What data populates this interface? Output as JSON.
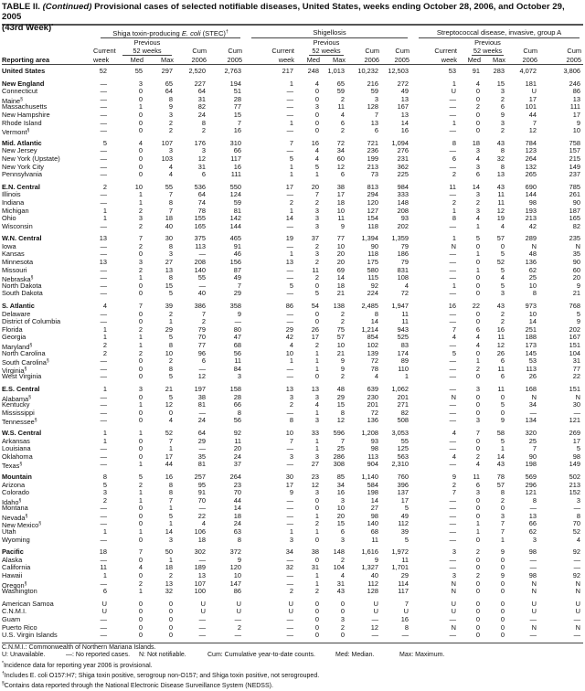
{
  "title": {
    "prefix": "TABLE II. ",
    "italic": "(Continued)",
    "text": " Provisional cases of selected notifiable diseases, United States, weeks ending October 28, 2006, and October 29, 2005",
    "line2": "(43rd Week)",
    "mark": "*"
  },
  "groups": [
    {
      "label": "Shiga toxin-producing ",
      "italic": "E. coli",
      "suffix": " (STEC)",
      "mark": "†"
    },
    {
      "label": "Shigellosis"
    },
    {
      "label": "Streptococcal disease, invasive, group A"
    }
  ],
  "headers": {
    "previous": "Previous",
    "weeks52": "52 weeks",
    "current": "Current",
    "week": "week",
    "med": "Med",
    "max": "Max",
    "cum": "Cum",
    "y2006": "2006",
    "y2005": "2005",
    "area": "Reporting area"
  },
  "rows": [
    {
      "name": "United States",
      "bold": true,
      "gap": false,
      "v": [
        "52",
        "55",
        "297",
        "2,520",
        "2,763",
        "217",
        "248",
        "1,013",
        "10,232",
        "12,503",
        "53",
        "91",
        "283",
        "4,072",
        "3,806"
      ]
    },
    {
      "name": "New England",
      "bold": true,
      "gap": true,
      "v": [
        "—",
        "3",
        "65",
        "227",
        "194",
        "1",
        "4",
        "65",
        "216",
        "272",
        "1",
        "4",
        "15",
        "181",
        "246"
      ]
    },
    {
      "name": "Connecticut",
      "v": [
        "—",
        "0",
        "64",
        "64",
        "51",
        "—",
        "0",
        "59",
        "59",
        "49",
        "U",
        "0",
        "3",
        "U",
        "86"
      ]
    },
    {
      "name": "Maine",
      "sup": "§",
      "v": [
        "—",
        "0",
        "8",
        "31",
        "28",
        "—",
        "0",
        "2",
        "3",
        "13",
        "—",
        "0",
        "2",
        "17",
        "13"
      ]
    },
    {
      "name": "Massachusetts",
      "v": [
        "—",
        "1",
        "9",
        "82",
        "77",
        "—",
        "3",
        "11",
        "128",
        "167",
        "—",
        "2",
        "6",
        "101",
        "111"
      ]
    },
    {
      "name": "New Hampshire",
      "v": [
        "—",
        "0",
        "3",
        "24",
        "15",
        "—",
        "0",
        "4",
        "7",
        "13",
        "—",
        "0",
        "9",
        "44",
        "17"
      ]
    },
    {
      "name": "Rhode Island",
      "v": [
        "—",
        "0",
        "2",
        "8",
        "7",
        "1",
        "0",
        "6",
        "13",
        "14",
        "1",
        "0",
        "3",
        "7",
        "9"
      ]
    },
    {
      "name": "Vermont",
      "sup": "§",
      "v": [
        "—",
        "0",
        "2",
        "2",
        "16",
        "—",
        "0",
        "2",
        "6",
        "16",
        "—",
        "0",
        "2",
        "12",
        "10"
      ]
    },
    {
      "name": "Mid. Atlantic",
      "bold": true,
      "gap": true,
      "v": [
        "5",
        "4",
        "107",
        "176",
        "310",
        "7",
        "16",
        "72",
        "721",
        "1,094",
        "8",
        "18",
        "43",
        "784",
        "758"
      ]
    },
    {
      "name": "New Jersey",
      "v": [
        "—",
        "0",
        "3",
        "3",
        "66",
        "—",
        "4",
        "34",
        "236",
        "276",
        "—",
        "3",
        "8",
        "123",
        "157"
      ]
    },
    {
      "name": "New York (Upstate)",
      "v": [
        "—",
        "0",
        "103",
        "12",
        "117",
        "5",
        "4",
        "60",
        "199",
        "231",
        "6",
        "4",
        "32",
        "264",
        "215"
      ]
    },
    {
      "name": "New York City",
      "v": [
        "—",
        "0",
        "4",
        "31",
        "16",
        "1",
        "5",
        "12",
        "213",
        "362",
        "—",
        "3",
        "8",
        "132",
        "149"
      ]
    },
    {
      "name": "Pennsylvania",
      "v": [
        "—",
        "0",
        "4",
        "6",
        "111",
        "1",
        "1",
        "6",
        "73",
        "225",
        "2",
        "6",
        "13",
        "265",
        "237"
      ]
    },
    {
      "name": "E.N. Central",
      "bold": true,
      "gap": true,
      "v": [
        "2",
        "10",
        "55",
        "536",
        "550",
        "17",
        "20",
        "38",
        "813",
        "984",
        "11",
        "14",
        "43",
        "690",
        "785"
      ]
    },
    {
      "name": "Illinois",
      "v": [
        "—",
        "1",
        "7",
        "64",
        "124",
        "—",
        "7",
        "17",
        "294",
        "333",
        "—",
        "3",
        "11",
        "144",
        "261"
      ]
    },
    {
      "name": "Indiana",
      "v": [
        "—",
        "1",
        "8",
        "74",
        "59",
        "2",
        "2",
        "18",
        "120",
        "148",
        "2",
        "2",
        "11",
        "98",
        "90"
      ]
    },
    {
      "name": "Michigan",
      "v": [
        "1",
        "2",
        "7",
        "78",
        "81",
        "1",
        "3",
        "10",
        "127",
        "208",
        "1",
        "3",
        "12",
        "193",
        "187"
      ]
    },
    {
      "name": "Ohio",
      "v": [
        "1",
        "3",
        "18",
        "155",
        "142",
        "14",
        "3",
        "11",
        "154",
        "93",
        "8",
        "4",
        "19",
        "213",
        "165"
      ]
    },
    {
      "name": "Wisconsin",
      "v": [
        "—",
        "2",
        "40",
        "165",
        "144",
        "—",
        "3",
        "9",
        "118",
        "202",
        "—",
        "1",
        "4",
        "42",
        "82"
      ]
    },
    {
      "name": "W.N. Central",
      "bold": true,
      "gap": true,
      "v": [
        "13",
        "7",
        "30",
        "375",
        "465",
        "19",
        "37",
        "77",
        "1,394",
        "1,359",
        "1",
        "5",
        "57",
        "289",
        "235"
      ]
    },
    {
      "name": "Iowa",
      "v": [
        "—",
        "2",
        "8",
        "113",
        "91",
        "—",
        "2",
        "10",
        "90",
        "79",
        "N",
        "0",
        "0",
        "N",
        "N"
      ]
    },
    {
      "name": "Kansas",
      "v": [
        "—",
        "0",
        "3",
        "—",
        "46",
        "1",
        "3",
        "20",
        "118",
        "186",
        "—",
        "1",
        "5",
        "48",
        "35"
      ]
    },
    {
      "name": "Minnesota",
      "v": [
        "13",
        "3",
        "27",
        "208",
        "156",
        "13",
        "2",
        "20",
        "175",
        "79",
        "—",
        "0",
        "52",
        "136",
        "90"
      ]
    },
    {
      "name": "Missouri",
      "v": [
        "—",
        "2",
        "13",
        "140",
        "87",
        "—",
        "11",
        "69",
        "580",
        "831",
        "—",
        "1",
        "5",
        "62",
        "60"
      ]
    },
    {
      "name": "Nebraska",
      "sup": "§",
      "v": [
        "—",
        "1",
        "8",
        "55",
        "49",
        "—",
        "2",
        "14",
        "115",
        "108",
        "—",
        "0",
        "4",
        "25",
        "20"
      ]
    },
    {
      "name": "North Dakota",
      "v": [
        "—",
        "0",
        "15",
        "—",
        "7",
        "5",
        "0",
        "18",
        "92",
        "4",
        "1",
        "0",
        "5",
        "10",
        "9"
      ]
    },
    {
      "name": "South Dakota",
      "v": [
        "—",
        "0",
        "5",
        "40",
        "29",
        "—",
        "5",
        "21",
        "224",
        "72",
        "—",
        "0",
        "3",
        "8",
        "21"
      ]
    },
    {
      "name": "S. Atlantic",
      "bold": true,
      "gap": true,
      "v": [
        "4",
        "7",
        "39",
        "386",
        "358",
        "86",
        "54",
        "138",
        "2,485",
        "1,947",
        "16",
        "22",
        "43",
        "973",
        "768"
      ]
    },
    {
      "name": "Delaware",
      "v": [
        "—",
        "0",
        "2",
        "7",
        "9",
        "—",
        "0",
        "2",
        "8",
        "11",
        "—",
        "0",
        "2",
        "10",
        "5"
      ]
    },
    {
      "name": "District of Columbia",
      "v": [
        "—",
        "0",
        "1",
        "2",
        "—",
        "—",
        "0",
        "2",
        "14",
        "11",
        "—",
        "0",
        "2",
        "14",
        "9"
      ]
    },
    {
      "name": "Florida",
      "v": [
        "1",
        "2",
        "29",
        "79",
        "80",
        "29",
        "26",
        "75",
        "1,214",
        "943",
        "7",
        "6",
        "16",
        "251",
        "202"
      ]
    },
    {
      "name": "Georgia",
      "v": [
        "1",
        "1",
        "5",
        "70",
        "47",
        "42",
        "17",
        "57",
        "854",
        "525",
        "4",
        "4",
        "11",
        "188",
        "167"
      ]
    },
    {
      "name": "Maryland",
      "sup": "§",
      "v": [
        "2",
        "1",
        "8",
        "77",
        "68",
        "4",
        "2",
        "10",
        "102",
        "83",
        "—",
        "4",
        "12",
        "173",
        "151"
      ]
    },
    {
      "name": "North Carolina",
      "v": [
        "2",
        "2",
        "10",
        "96",
        "56",
        "10",
        "1",
        "21",
        "139",
        "174",
        "5",
        "0",
        "26",
        "145",
        "104"
      ]
    },
    {
      "name": "South Carolina",
      "sup": "§",
      "v": [
        "—",
        "0",
        "2",
        "6",
        "11",
        "1",
        "1",
        "9",
        "72",
        "89",
        "—",
        "1",
        "6",
        "53",
        "31"
      ]
    },
    {
      "name": "Virginia",
      "sup": "§",
      "v": [
        "—",
        "0",
        "8",
        "—",
        "84",
        "—",
        "1",
        "9",
        "78",
        "110",
        "—",
        "2",
        "11",
        "113",
        "77"
      ]
    },
    {
      "name": "West Virginia",
      "v": [
        "—",
        "0",
        "5",
        "12",
        "3",
        "—",
        "0",
        "2",
        "4",
        "1",
        "—",
        "0",
        "6",
        "26",
        "22"
      ]
    },
    {
      "name": "E.S. Central",
      "bold": true,
      "gap": true,
      "v": [
        "1",
        "3",
        "21",
        "197",
        "158",
        "13",
        "13",
        "48",
        "639",
        "1,062",
        "—",
        "3",
        "11",
        "168",
        "151"
      ]
    },
    {
      "name": "Alabama",
      "sup": "§",
      "v": [
        "—",
        "0",
        "5",
        "38",
        "28",
        "3",
        "3",
        "29",
        "230",
        "201",
        "N",
        "0",
        "0",
        "N",
        "N"
      ]
    },
    {
      "name": "Kentucky",
      "v": [
        "—",
        "1",
        "12",
        "81",
        "66",
        "2",
        "4",
        "15",
        "201",
        "271",
        "—",
        "0",
        "5",
        "34",
        "30"
      ]
    },
    {
      "name": "Mississippi",
      "v": [
        "—",
        "0",
        "0",
        "—",
        "8",
        "—",
        "1",
        "8",
        "72",
        "82",
        "—",
        "0",
        "0",
        "—",
        "—"
      ]
    },
    {
      "name": "Tennessee",
      "sup": "§",
      "v": [
        "—",
        "0",
        "4",
        "24",
        "56",
        "8",
        "3",
        "12",
        "136",
        "508",
        "—",
        "3",
        "9",
        "134",
        "121"
      ]
    },
    {
      "name": "W.S. Central",
      "bold": true,
      "gap": true,
      "v": [
        "1",
        "1",
        "52",
        "64",
        "92",
        "10",
        "33",
        "596",
        "1,208",
        "3,053",
        "4",
        "7",
        "58",
        "320",
        "269"
      ]
    },
    {
      "name": "Arkansas",
      "v": [
        "1",
        "0",
        "7",
        "29",
        "11",
        "7",
        "1",
        "7",
        "93",
        "55",
        "—",
        "0",
        "5",
        "25",
        "17"
      ]
    },
    {
      "name": "Louisiana",
      "v": [
        "—",
        "0",
        "1",
        "—",
        "20",
        "—",
        "1",
        "25",
        "98",
        "125",
        "—",
        "0",
        "1",
        "7",
        "5"
      ]
    },
    {
      "name": "Oklahoma",
      "v": [
        "—",
        "0",
        "17",
        "35",
        "24",
        "3",
        "3",
        "286",
        "113",
        "563",
        "4",
        "2",
        "14",
        "90",
        "98"
      ]
    },
    {
      "name": "Texas",
      "sup": "§",
      "v": [
        "—",
        "1",
        "44",
        "81",
        "37",
        "—",
        "27",
        "308",
        "904",
        "2,310",
        "—",
        "4",
        "43",
        "198",
        "149"
      ]
    },
    {
      "name": "Mountain",
      "bold": true,
      "gap": true,
      "v": [
        "8",
        "5",
        "16",
        "257",
        "264",
        "30",
        "23",
        "85",
        "1,140",
        "760",
        "9",
        "11",
        "78",
        "569",
        "502"
      ]
    },
    {
      "name": "Arizona",
      "v": [
        "5",
        "2",
        "8",
        "95",
        "23",
        "17",
        "12",
        "34",
        "584",
        "396",
        "2",
        "6",
        "57",
        "296",
        "213"
      ]
    },
    {
      "name": "Colorado",
      "v": [
        "3",
        "1",
        "8",
        "91",
        "70",
        "9",
        "3",
        "16",
        "198",
        "137",
        "7",
        "3",
        "8",
        "121",
        "152"
      ]
    },
    {
      "name": "Idaho",
      "sup": "§",
      "v": [
        "2",
        "1",
        "7",
        "70",
        "44",
        "—",
        "0",
        "3",
        "14",
        "17",
        "—",
        "0",
        "2",
        "8",
        "3"
      ]
    },
    {
      "name": "Montana",
      "v": [
        "—",
        "0",
        "1",
        "—",
        "14",
        "—",
        "0",
        "10",
        "27",
        "5",
        "—",
        "0",
        "0",
        "—",
        "—"
      ]
    },
    {
      "name": "Nevada",
      "sup": "§",
      "v": [
        "—",
        "0",
        "5",
        "22",
        "18",
        "—",
        "1",
        "20",
        "98",
        "49",
        "—",
        "0",
        "3",
        "13",
        "8"
      ]
    },
    {
      "name": "New Mexico",
      "sup": "§",
      "v": [
        "—",
        "0",
        "1",
        "4",
        "24",
        "—",
        "2",
        "15",
        "140",
        "112",
        "—",
        "1",
        "7",
        "66",
        "70"
      ]
    },
    {
      "name": "Utah",
      "v": [
        "1",
        "1",
        "14",
        "106",
        "63",
        "1",
        "1",
        "6",
        "68",
        "39",
        "—",
        "1",
        "7",
        "62",
        "52"
      ]
    },
    {
      "name": "Wyoming",
      "v": [
        "—",
        "0",
        "3",
        "18",
        "8",
        "3",
        "0",
        "3",
        "11",
        "5",
        "—",
        "0",
        "1",
        "3",
        "4"
      ]
    },
    {
      "name": "Pacific",
      "bold": true,
      "gap": true,
      "v": [
        "18",
        "7",
        "50",
        "302",
        "372",
        "34",
        "38",
        "148",
        "1,616",
        "1,972",
        "3",
        "2",
        "9",
        "98",
        "92"
      ]
    },
    {
      "name": "Alaska",
      "v": [
        "—",
        "0",
        "1",
        "—",
        "9",
        "—",
        "0",
        "2",
        "9",
        "11",
        "—",
        "0",
        "0",
        "—",
        "—"
      ]
    },
    {
      "name": "California",
      "v": [
        "11",
        "4",
        "18",
        "189",
        "120",
        "32",
        "31",
        "104",
        "1,327",
        "1,701",
        "—",
        "0",
        "0",
        "—",
        "—"
      ]
    },
    {
      "name": "Hawaii",
      "v": [
        "1",
        "0",
        "2",
        "13",
        "10",
        "—",
        "1",
        "4",
        "40",
        "29",
        "3",
        "2",
        "9",
        "98",
        "92"
      ]
    },
    {
      "name": "Oregon",
      "sup": "§",
      "v": [
        "—",
        "2",
        "13",
        "107",
        "147",
        "—",
        "1",
        "31",
        "112",
        "114",
        "N",
        "0",
        "0",
        "N",
        "N"
      ]
    },
    {
      "name": "Washington",
      "v": [
        "6",
        "1",
        "32",
        "100",
        "86",
        "2",
        "2",
        "43",
        "128",
        "117",
        "N",
        "0",
        "0",
        "N",
        "N"
      ]
    },
    {
      "name": "American Samoa",
      "gap": true,
      "v": [
        "U",
        "0",
        "0",
        "U",
        "U",
        "U",
        "0",
        "0",
        "U",
        "7",
        "U",
        "0",
        "0",
        "U",
        "U"
      ]
    },
    {
      "name": "C.N.M.I.",
      "v": [
        "U",
        "0",
        "0",
        "U",
        "U",
        "U",
        "0",
        "0",
        "U",
        "U",
        "U",
        "0",
        "0",
        "U",
        "U"
      ]
    },
    {
      "name": "Guam",
      "v": [
        "—",
        "0",
        "0",
        "—",
        "—",
        "—",
        "0",
        "3",
        "—",
        "16",
        "—",
        "0",
        "0",
        "—",
        "—"
      ]
    },
    {
      "name": "Puerto Rico",
      "v": [
        "—",
        "0",
        "0",
        "—",
        "2",
        "—",
        "0",
        "2",
        "12",
        "8",
        "N",
        "0",
        "0",
        "N",
        "N"
      ]
    },
    {
      "name": "U.S. Virgin Islands",
      "v": [
        "—",
        "0",
        "0",
        "—",
        "—",
        "—",
        "0",
        "0",
        "—",
        "—",
        "—",
        "0",
        "0",
        "—",
        "—"
      ]
    }
  ],
  "footnotes": {
    "cnmi": "C.N.M.I.: Commonwealth of Northern Mariana Islands.",
    "legend": [
      "U: Unavailable.",
      "—: No reported cases.",
      "N: Not notifiable.",
      "Cum: Cumulative year-to-date counts.",
      "Med: Median.",
      "Max: Maximum."
    ],
    "notes": [
      {
        "mark": "*",
        "text": "Incidence data for reporting year 2006 is provisional."
      },
      {
        "mark": "†",
        "text": "Includes E. coli O157:H7; Shiga toxin positive, serogroup non-O157; and Shiga toxin positive, not serogrouped."
      },
      {
        "mark": "§",
        "text": "Contains data reported through the National Electronic Disease Surveillance System (NEDSS)."
      }
    ]
  }
}
